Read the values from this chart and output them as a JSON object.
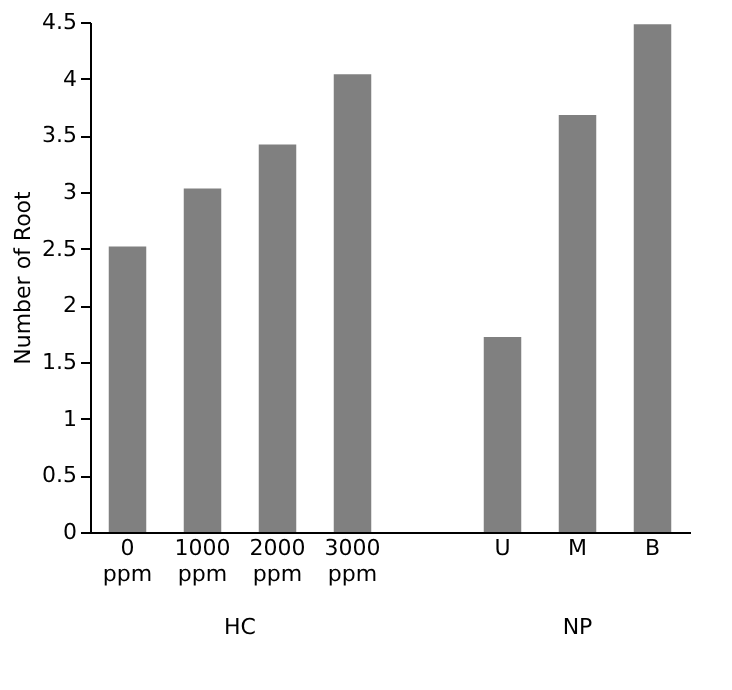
{
  "chart_data": {
    "type": "bar",
    "ylabel": "Number of Root",
    "categories": [
      "0 ppm",
      "1000 ppm",
      "2000 ppm",
      "3000 ppm",
      null,
      "U",
      "M",
      "B"
    ],
    "values": [
      2.52,
      3.03,
      3.42,
      4.04,
      null,
      1.72,
      3.68,
      4.48
    ],
    "color": "#808080",
    "ylim": [
      0,
      4.5
    ],
    "yticks": [
      0,
      0.5,
      1,
      1.5,
      2,
      2.5,
      3,
      3.5,
      4,
      4.5
    ],
    "annotations": [
      "HC",
      "NP"
    ],
    "grid": false
  }
}
